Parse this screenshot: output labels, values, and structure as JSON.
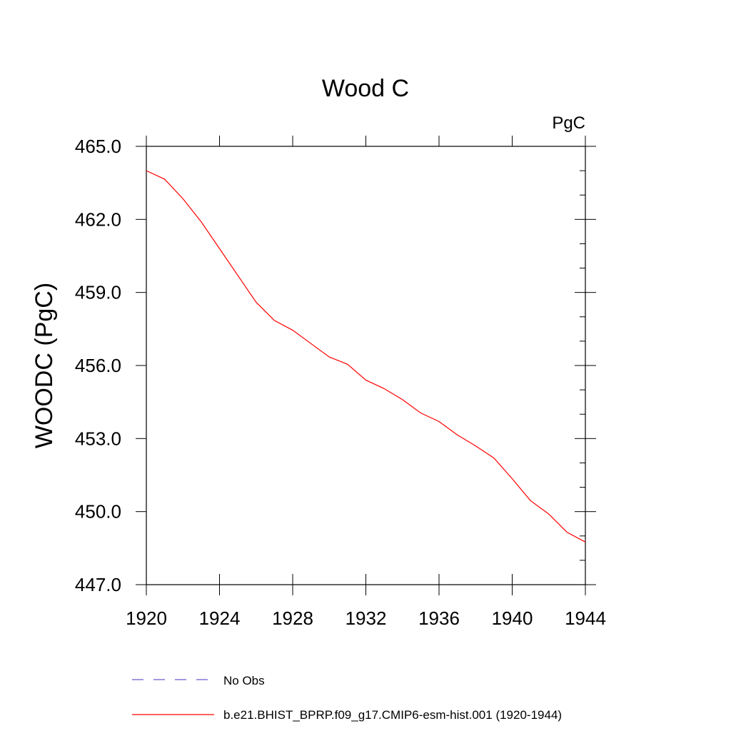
{
  "chart_data": {
    "type": "line",
    "title": "Wood C",
    "units_label": "PgC",
    "ylabel": "WOODC  (PgC)",
    "xlabel": "",
    "xlim": [
      1920,
      1944
    ],
    "ylim": [
      447.0,
      465.0
    ],
    "x_ticks": [
      1920,
      1924,
      1928,
      1932,
      1936,
      1940,
      1944
    ],
    "x_tick_labels": [
      "1920",
      "1924",
      "1928",
      "1932",
      "1936",
      "1940",
      "1944"
    ],
    "y_ticks": [
      447.0,
      450.0,
      453.0,
      456.0,
      459.0,
      462.0,
      465.0
    ],
    "y_tick_labels": [
      "447.0",
      "450.0",
      "453.0",
      "456.0",
      "459.0",
      "462.0",
      "465.0"
    ],
    "grid": false,
    "legend_position": "bottom",
    "legend": [
      {
        "label": "No Obs",
        "color": "#6a5acd",
        "style": "dashed"
      },
      {
        "label": "b.e21.BHIST_BPRP.f09_g17.CMIP6-esm-hist.001 (1920-1944)",
        "color": "#ff0000",
        "style": "solid"
      }
    ],
    "series": [
      {
        "name": "b.e21.BHIST_BPRP.f09_g17.CMIP6-esm-hist.001 (1920-1944)",
        "color": "#ff0000",
        "x": [
          1920,
          1921,
          1922,
          1923,
          1924,
          1925,
          1926,
          1927,
          1928,
          1929,
          1930,
          1931,
          1932,
          1933,
          1934,
          1935,
          1936,
          1937,
          1938,
          1939,
          1940,
          1941,
          1942,
          1943,
          1944
        ],
        "values": [
          464.0,
          463.65,
          462.85,
          461.9,
          460.8,
          459.7,
          458.6,
          457.85,
          457.45,
          456.9,
          456.35,
          456.05,
          455.4,
          455.05,
          454.6,
          454.05,
          453.7,
          453.15,
          452.7,
          452.2,
          451.35,
          450.45,
          449.9,
          449.15,
          448.75
        ]
      }
    ]
  }
}
